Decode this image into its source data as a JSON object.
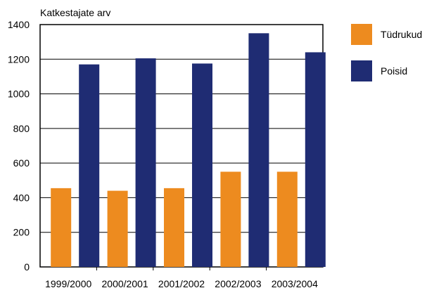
{
  "chart_data": {
    "type": "bar",
    "ylabel": "Katkestajate arv",
    "xlabel": "",
    "categories": [
      "1999/2000",
      "2000/2001",
      "2001/2002",
      "2002/2003",
      "2003/2004"
    ],
    "series": [
      {
        "name": "Tüdrukud",
        "color": "#ED8B1F",
        "values": [
          455,
          440,
          455,
          550,
          550
        ]
      },
      {
        "name": "Poisid",
        "color": "#1F2C73",
        "values": [
          1170,
          1205,
          1175,
          1350,
          1240
        ]
      }
    ],
    "ylim": [
      0,
      1400
    ],
    "yticks": [
      0,
      200,
      400,
      600,
      800,
      1000,
      1200,
      1400
    ],
    "grid": true,
    "legend_position": "right"
  }
}
